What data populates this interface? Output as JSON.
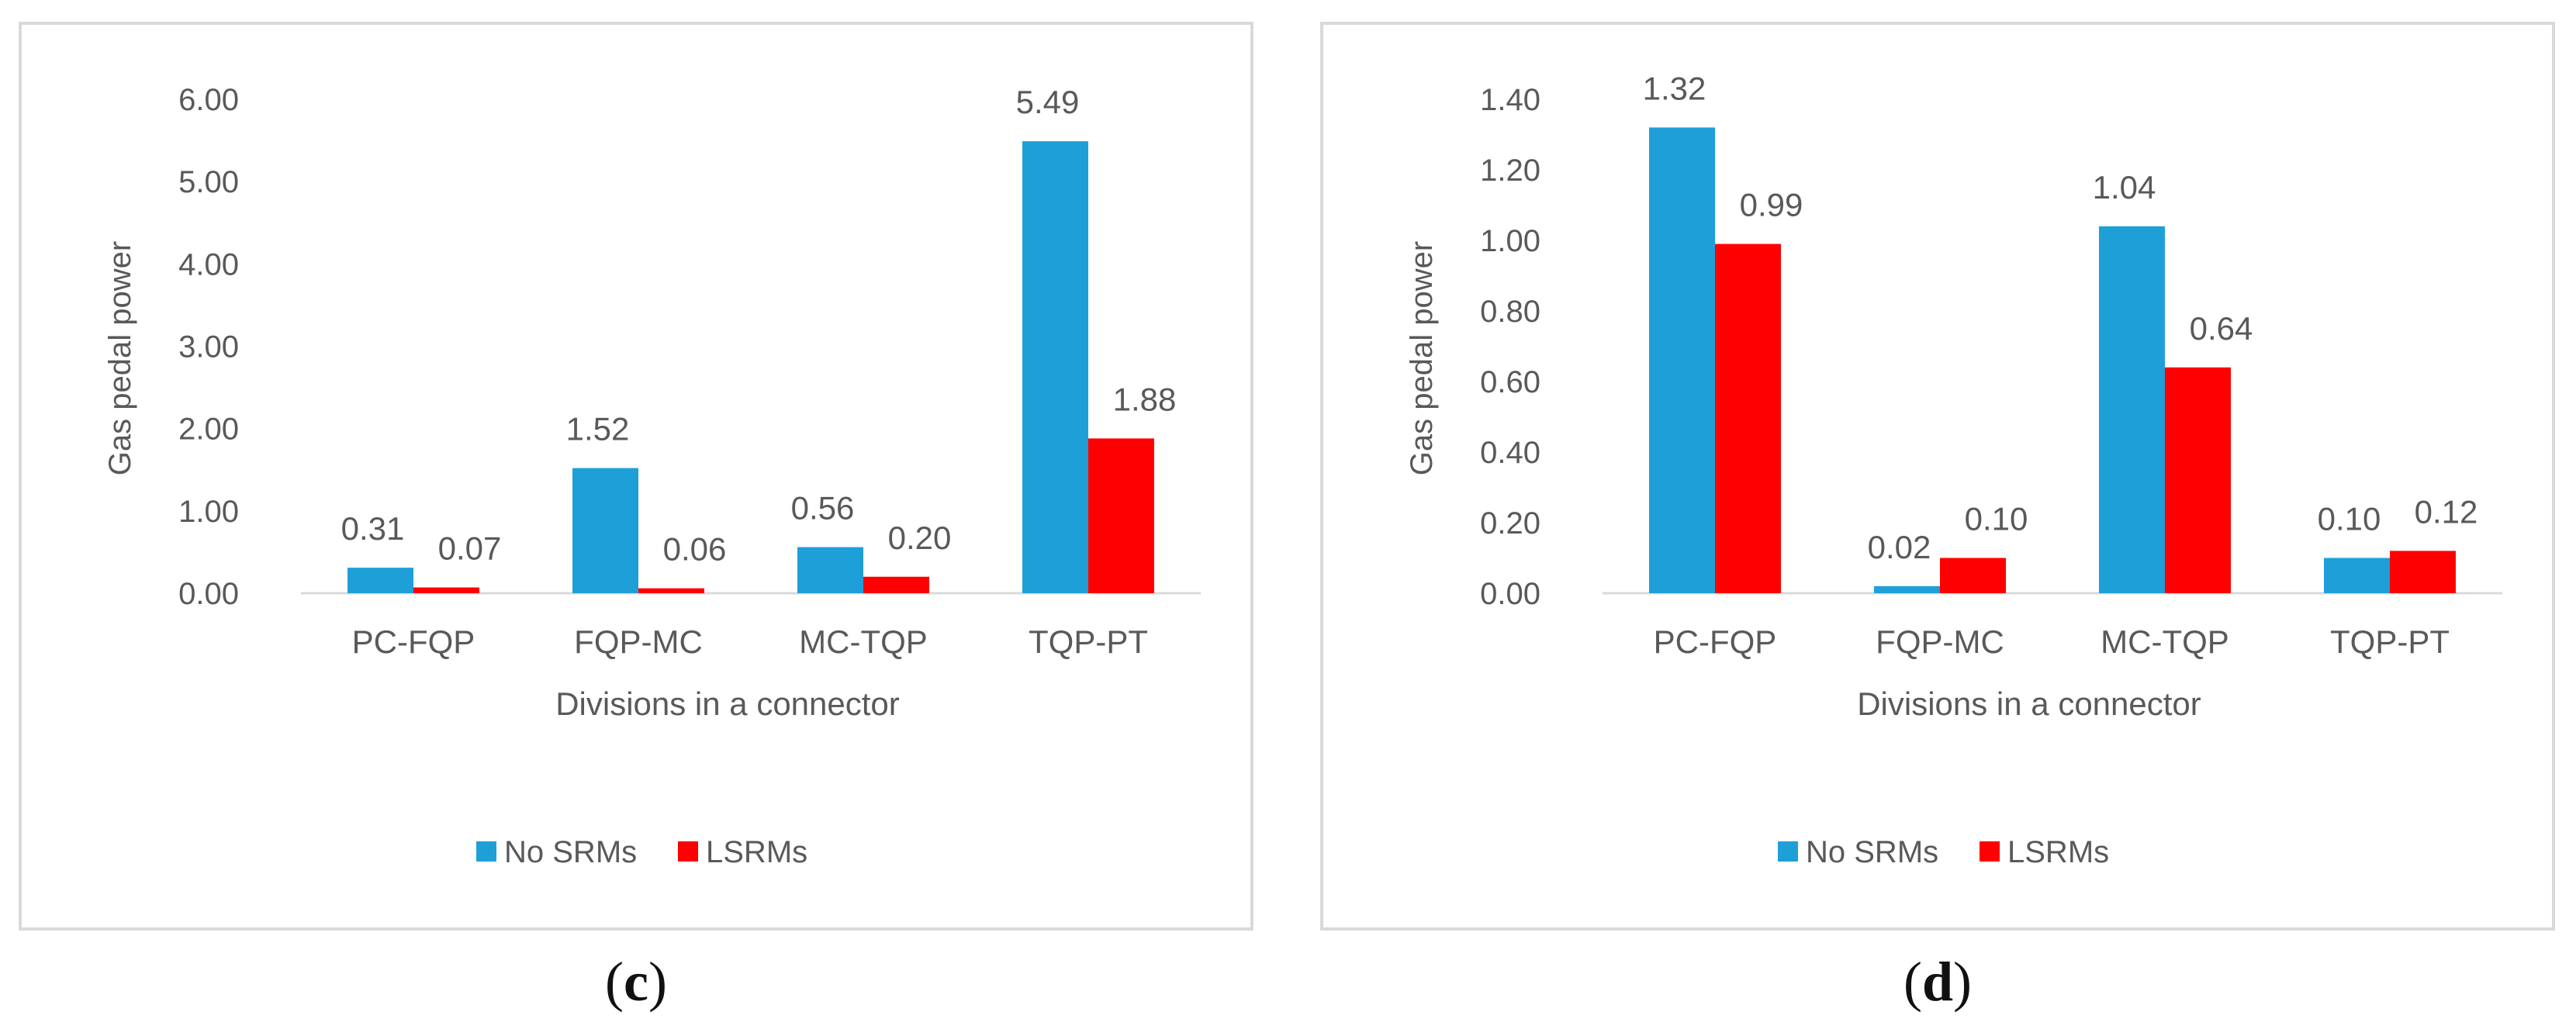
{
  "chart_data": [
    {
      "type": "bar",
      "panel": "c",
      "categories": [
        "PC-FQP",
        "FQP-MC",
        "MC-TQP",
        "TQP-PT"
      ],
      "series": [
        {
          "name": "No SRMs",
          "color": "#1f9fd8",
          "values": [
            0.31,
            1.52,
            0.56,
            5.49
          ],
          "labels": [
            "0.31",
            "1.52",
            "0.56",
            "5.49"
          ]
        },
        {
          "name": "LSRMs",
          "color": "#ff0000",
          "values": [
            0.07,
            0.06,
            0.2,
            1.88
          ],
          "labels": [
            "0.07",
            "0.06",
            "0.20",
            "1.88"
          ]
        }
      ],
      "yticks": [
        "0.00",
        "1.00",
        "2.00",
        "3.00",
        "4.00",
        "5.00",
        "6.00"
      ],
      "ylim": [
        0,
        6
      ],
      "ylabel": "Gas pedal power",
      "xlabel": "Divisions in a connector",
      "legend_position": "bottom",
      "caption_letter": "c"
    },
    {
      "type": "bar",
      "panel": "d",
      "categories": [
        "PC-FQP",
        "FQP-MC",
        "MC-TQP",
        "TQP-PT"
      ],
      "series": [
        {
          "name": "No SRMs",
          "color": "#1f9fd8",
          "values": [
            1.32,
            0.02,
            1.04,
            0.1
          ],
          "labels": [
            "1.32",
            "0.02",
            "1.04",
            "0.10"
          ]
        },
        {
          "name": "LSRMs",
          "color": "#ff0000",
          "values": [
            0.99,
            0.1,
            0.64,
            0.12
          ],
          "labels": [
            "0.99",
            "0.10",
            "0.64",
            "0.12"
          ]
        }
      ],
      "yticks": [
        "0.00",
        "0.20",
        "0.40",
        "0.60",
        "0.80",
        "1.00",
        "1.20",
        "1.40"
      ],
      "ylim": [
        0,
        1.4
      ],
      "ylabel": "Gas pedal power",
      "xlabel": "Divisions in a connector",
      "legend_position": "bottom",
      "caption_letter": "d"
    }
  ]
}
